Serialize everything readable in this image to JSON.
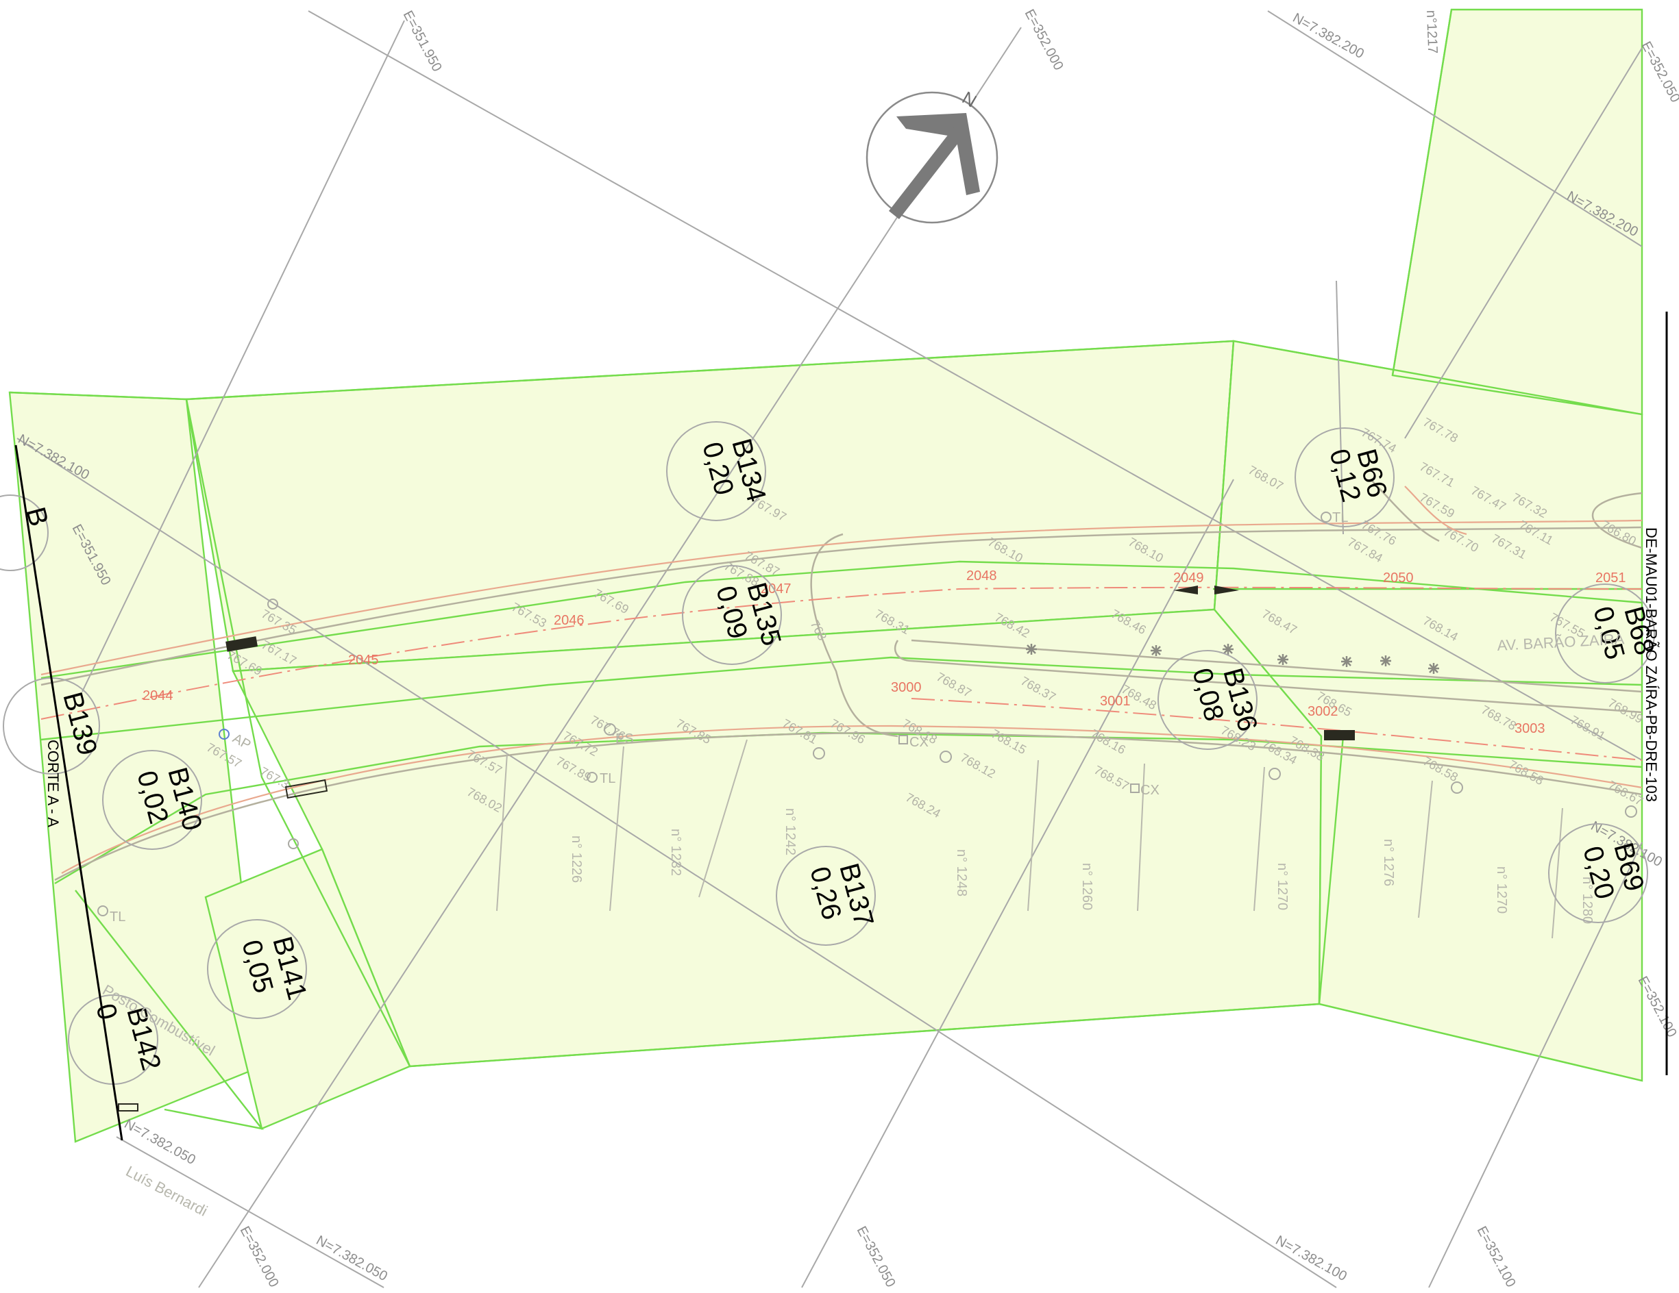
{
  "map": {
    "north_label": "N",
    "grid_labels": {
      "e_351950_top": "E=351.950",
      "e_352000_top": "E=352.000",
      "n_7382200_top": "N=7.382.200",
      "e_352050_right": "E=352.050",
      "n_7382200_right": "N=7.382.200",
      "n_7382100_left": "N=7.382.100",
      "e_351950_left": "E=351.950",
      "n_7382100_right": "N=7.382.100",
      "e_352100_right": "E=352.100",
      "n_7382050_left": "N=7.382.050",
      "e_352000_bottom": "E=352.000",
      "n_7382050_bottom": "N=7.382.050",
      "e_352050_bottom": "E=352.050",
      "n_7382100_bottom": "N=7.382.100",
      "e_352100_bottom": "E=352.100",
      "no_1217": "n°1217"
    },
    "stations": [
      "2044",
      "2045",
      "2046",
      "2047",
      "2048",
      "2049",
      "2050",
      "2051",
      "3000",
      "3001",
      "3002",
      "3003"
    ],
    "blocks": [
      {
        "id": "B134",
        "value": "0,20"
      },
      {
        "id": "B135",
        "value": "0,09"
      },
      {
        "id": "B66",
        "value": "0,12"
      },
      {
        "id": "B68",
        "value": "0,05"
      },
      {
        "id": "B136",
        "value": "0,08"
      },
      {
        "id": "B140",
        "value": "0,02"
      },
      {
        "id": "B137",
        "value": "0,26"
      },
      {
        "id": "B141",
        "value": "0,05"
      },
      {
        "id": "B69",
        "value": "0,20"
      },
      {
        "id": "B142",
        "value": "0"
      },
      {
        "id": "B139",
        "value": ""
      },
      {
        "id": "B",
        "value": ""
      }
    ],
    "elevations": [
      "767.35",
      "767.17",
      "767.69",
      "767.53",
      "767.69",
      "767.97",
      "767.87",
      "767.88",
      "768.10",
      "768.10",
      "768.07",
      "767.74",
      "767.78",
      "767.76",
      "767.84",
      "767.71",
      "767.59",
      "767.47",
      "767.70",
      "767.31",
      "767.32",
      "767.11",
      "766.80",
      "768.31",
      "768.42",
      "768.46",
      "768.47",
      "768.14",
      "767.55",
      "768.87",
      "768.37",
      "768.48",
      "768.65",
      "768.78",
      "768.91",
      "768.99",
      "767.57",
      "767.76",
      "767.72",
      "767.89",
      "767.85",
      "767.81",
      "767.96",
      "767.57",
      "768.02",
      "768.18",
      "768.15",
      "768.16",
      "768.12",
      "768.23",
      "768.34",
      "768.24",
      "768.57",
      "768.58",
      "768.58",
      "768.67",
      "768.38",
      "768",
      "767.3"
    ],
    "house_numbers": [
      "n° 1226",
      "n° 1232",
      "n° 1242",
      "n° 1248",
      "n° 1260",
      "n° 1270",
      "n° 1276",
      "n° 1270",
      "n° 1280"
    ],
    "utilities": [
      "ES",
      "TL",
      "CX",
      "CX",
      "TL",
      "TL",
      "AP"
    ],
    "street_av": "AV. BARÃO ZAÍRA",
    "street_luis": "Luís Bernardi",
    "posto": "Posto Combustível",
    "section": "CORTE A - A",
    "title": "DE-MAU01-BARÃO ZAÍRA-PB-DRE-103"
  }
}
